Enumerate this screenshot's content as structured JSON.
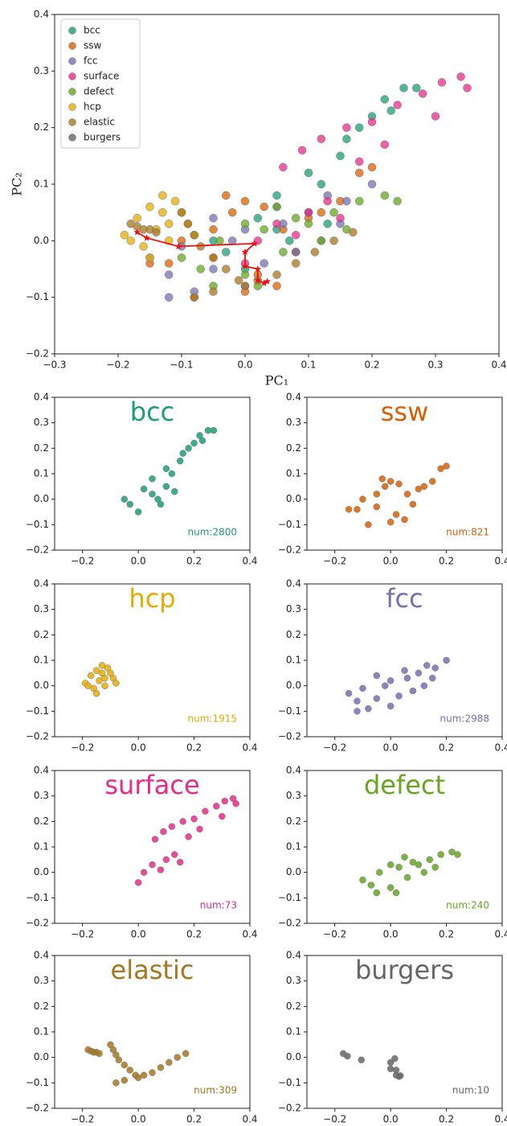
{
  "chart_data": [
    {
      "type": "scatter",
      "xlabel": "PC₁",
      "ylabel": "PC₂",
      "legend": "upper left",
      "xlim": [
        -0.3,
        0.4
      ],
      "ylim": [
        -0.2,
        0.4
      ],
      "xticks": [
        {
          "value": -0.3,
          "label": "−0.3"
        },
        {
          "value": -0.2,
          "label": "−0.2"
        },
        {
          "value": -0.1,
          "label": "−0.1"
        },
        {
          "value": 0,
          "label": "0.0"
        },
        0.1,
        0.2,
        0.3,
        0.4
      ],
      "yticks": [
        {
          "value": -0.2,
          "label": "−0.2"
        },
        {
          "value": -0.1,
          "label": "−0.1"
        },
        {
          "value": 0,
          "label": "0.0"
        },
        0.1,
        0.2,
        0.3,
        0.4
      ],
      "series": [
        {
          "name": "bcc",
          "color": "#1b9e77",
          "x": [
            -0.05,
            0,
            0.05,
            0.1,
            0.02,
            0.08,
            0.12,
            0.15,
            0.18,
            0.2,
            0.22,
            0.25,
            0.27,
            0.1,
            0.05,
            0.16,
            0.23,
            0.13,
            -0.03,
            0.07
          ],
          "y": [
            0,
            -0.05,
            0.02,
            0.05,
            0.04,
            -0.02,
            0.1,
            0.15,
            0.2,
            0.22,
            0.25,
            0.27,
            0.27,
            0.12,
            0.08,
            0.18,
            0.23,
            0.03,
            -0.02,
            0.0
          ]
        },
        {
          "name": "ssw",
          "color": "#d95f02",
          "x": [
            -0.15,
            -0.12,
            -0.08,
            -0.05,
            -0.02,
            0,
            0.03,
            0.06,
            0.1,
            0.12,
            0.15,
            0.18,
            0.2,
            -0.05,
            0.02,
            0.08,
            -0.1,
            0.05,
            0.0,
            -0.03
          ],
          "y": [
            -0.04,
            -0.04,
            -0.1,
            0.02,
            0.05,
            0.07,
            0.06,
            0.02,
            0.04,
            0.05,
            0.07,
            0.12,
            0.13,
            -0.03,
            -0.06,
            -0.02,
            0.0,
            -0.08,
            -0.09,
            0.08
          ]
        },
        {
          "name": "fcc",
          "color": "#7570b3",
          "x": [
            -0.15,
            -0.12,
            -0.08,
            -0.05,
            -0.02,
            0,
            0.03,
            0.06,
            0.1,
            0.13,
            0.16,
            0.2,
            -0.1,
            0.0,
            0.08,
            0.15,
            -0.05,
            0.05,
            0.12,
            -0.12
          ],
          "y": [
            -0.03,
            -0.06,
            -0.09,
            -0.05,
            0,
            0.02,
            -0.04,
            0.03,
            0.05,
            0.08,
            0.07,
            0.1,
            -0.01,
            -0.08,
            -0.02,
            0.03,
            0.04,
            0.06,
            0.0,
            -0.1
          ]
        },
        {
          "name": "surface",
          "color": "#e7298a",
          "x": [
            0.0,
            0.02,
            0.05,
            0.08,
            0.1,
            0.13,
            0.15,
            0.06,
            0.09,
            0.12,
            0.16,
            0.2,
            0.24,
            0.28,
            0.31,
            0.34,
            0.35,
            0.22,
            0.18,
            0.3
          ],
          "y": [
            -0.04,
            0.0,
            0.03,
            0.01,
            0.05,
            0.07,
            0.04,
            0.13,
            0.16,
            0.18,
            0.2,
            0.21,
            0.24,
            0.26,
            0.28,
            0.29,
            0.27,
            0.17,
            0.14,
            0.22
          ]
        },
        {
          "name": "defect",
          "color": "#66a61e",
          "x": [
            -0.1,
            -0.07,
            -0.04,
            0,
            0.03,
            0.06,
            0.1,
            0.14,
            0.18,
            0.22,
            0.24,
            0.02,
            0.08,
            0.12,
            -0.05,
            0.05,
            0.16,
            0.0
          ],
          "y": [
            -0.03,
            -0.05,
            0.0,
            -0.06,
            0.02,
            -0.02,
            0.03,
            0.05,
            0.07,
            0.08,
            0.07,
            -0.08,
            0.04,
            0.0,
            -0.08,
            0.06,
            0.02,
            0.03
          ]
        },
        {
          "name": "hcp",
          "color": "#e6ab02",
          "x": [
            -0.19,
            -0.17,
            -0.15,
            -0.13,
            -0.11,
            -0.09,
            -0.16,
            -0.14,
            -0.12,
            -0.1,
            -0.15,
            -0.12,
            -0.18,
            -0.08,
            -0.13
          ],
          "y": [
            0.01,
            0.04,
            0.06,
            0.08,
            0.07,
            0.03,
            -0.01,
            0.02,
            0.0,
            0.05,
            -0.03,
            0.03,
            0.0,
            0.01,
            0.05
          ]
        },
        {
          "name": "elastic",
          "color": "#a6761d",
          "x": [
            -0.18,
            -0.17,
            -0.16,
            -0.15,
            -0.14,
            -0.1,
            -0.09,
            -0.08,
            -0.07,
            -0.05,
            -0.03,
            -0.01,
            0.0,
            -0.08,
            -0.05,
            0.02,
            0.05,
            0.08,
            0.11,
            0.14,
            0.17
          ],
          "y": [
            0.03,
            0.025,
            0.02,
            0.02,
            0.015,
            0.05,
            0.03,
            0.01,
            -0.01,
            -0.03,
            -0.05,
            -0.07,
            -0.08,
            -0.1,
            -0.09,
            -0.07,
            -0.06,
            -0.04,
            -0.02,
            0.0,
            0.015
          ]
        },
        {
          "name": "burgers",
          "color": "#666666",
          "line_color": "#ee1111",
          "x": [
            -0.17,
            -0.155,
            -0.105,
            0.015,
            0.0,
            0.0,
            0.02,
            0.02,
            0.03,
            0.035
          ],
          "y": [
            0.015,
            0.005,
            -0.01,
            -0.005,
            -0.02,
            -0.045,
            -0.05,
            -0.07,
            -0.075,
            -0.072
          ]
        }
      ]
    },
    {
      "type": "panel",
      "title": "bcc",
      "annotation": "num:2800",
      "xlim": [
        -0.3,
        0.4
      ],
      "ylim": [
        -0.2,
        0.4
      ],
      "xticks": [
        {
          "value": -0.2,
          "label": "−0.2"
        },
        {
          "value": 0,
          "label": "0.0"
        },
        0.2,
        0.4
      ],
      "yticks": [
        {
          "value": -0.2,
          "label": "−0.2"
        },
        {
          "value": -0.1,
          "label": "−0.1"
        },
        {
          "value": 0,
          "label": "0.0"
        },
        0.1,
        0.2,
        0.3,
        0.4
      ]
    },
    {
      "type": "panel",
      "title": "ssw",
      "annotation": "num:821",
      "xlim": [
        -0.3,
        0.4
      ],
      "ylim": [
        -0.2,
        0.4
      ],
      "xticks": [
        {
          "value": -0.2,
          "label": "−0.2"
        },
        {
          "value": 0,
          "label": "0.0"
        },
        0.2,
        0.4
      ],
      "yticks": [
        {
          "value": -0.2,
          "label": "−0.2"
        },
        {
          "value": -0.1,
          "label": "−0.1"
        },
        {
          "value": 0,
          "label": "0.0"
        },
        0.1,
        0.2,
        0.3,
        0.4
      ]
    },
    {
      "type": "panel",
      "title": "hcp",
      "annotation": "num:1915",
      "xlim": [
        -0.3,
        0.4
      ],
      "ylim": [
        -0.2,
        0.4
      ],
      "xticks": [
        {
          "value": -0.2,
          "label": "−0.2"
        },
        {
          "value": 0,
          "label": "0.0"
        },
        0.2,
        0.4
      ],
      "yticks": [
        {
          "value": -0.2,
          "label": "−0.2"
        },
        {
          "value": -0.1,
          "label": "−0.1"
        },
        {
          "value": 0,
          "label": "0.0"
        },
        0.1,
        0.2,
        0.3,
        0.4
      ]
    },
    {
      "type": "panel",
      "title": "fcc",
      "annotation": "num:2988",
      "xlim": [
        -0.3,
        0.4
      ],
      "ylim": [
        -0.2,
        0.4
      ],
      "xticks": [
        {
          "value": -0.2,
          "label": "−0.2"
        },
        {
          "value": 0,
          "label": "0.0"
        },
        0.2,
        0.4
      ],
      "yticks": [
        {
          "value": -0.2,
          "label": "−0.2"
        },
        {
          "value": -0.1,
          "label": "−0.1"
        },
        {
          "value": 0,
          "label": "0.0"
        },
        0.1,
        0.2,
        0.3,
        0.4
      ]
    },
    {
      "type": "panel",
      "title": "surface",
      "annotation": "num:73",
      "xlim": [
        -0.3,
        0.4
      ],
      "ylim": [
        -0.2,
        0.4
      ],
      "xticks": [
        {
          "value": -0.2,
          "label": "−0.2"
        },
        {
          "value": 0,
          "label": "0.0"
        },
        0.2,
        0.4
      ],
      "yticks": [
        {
          "value": -0.2,
          "label": "−0.2"
        },
        {
          "value": -0.1,
          "label": "−0.1"
        },
        {
          "value": 0,
          "label": "0.0"
        },
        0.1,
        0.2,
        0.3,
        0.4
      ]
    },
    {
      "type": "panel",
      "title": "defect",
      "annotation": "num:240",
      "xlim": [
        -0.3,
        0.4
      ],
      "ylim": [
        -0.2,
        0.4
      ],
      "xticks": [
        {
          "value": -0.2,
          "label": "−0.2"
        },
        {
          "value": 0,
          "label": "0.0"
        },
        0.2,
        0.4
      ],
      "yticks": [
        {
          "value": -0.2,
          "label": "−0.2"
        },
        {
          "value": -0.1,
          "label": "−0.1"
        },
        {
          "value": 0,
          "label": "0.0"
        },
        0.1,
        0.2,
        0.3,
        0.4
      ]
    },
    {
      "type": "panel",
      "title": "elastic",
      "annotation": "num:309",
      "xlim": [
        -0.3,
        0.4
      ],
      "ylim": [
        -0.2,
        0.4
      ],
      "xticks": [
        {
          "value": -0.2,
          "label": "−0.2"
        },
        {
          "value": 0,
          "label": "0.0"
        },
        0.2,
        0.4
      ],
      "yticks": [
        {
          "value": -0.2,
          "label": "−0.2"
        },
        {
          "value": -0.1,
          "label": "−0.1"
        },
        {
          "value": 0,
          "label": "0.0"
        },
        0.1,
        0.2,
        0.3,
        0.4
      ]
    },
    {
      "type": "panel",
      "title": "burgers",
      "annotation": "num:10",
      "xlim": [
        -0.3,
        0.4
      ],
      "ylim": [
        -0.2,
        0.4
      ],
      "xticks": [
        {
          "value": -0.2,
          "label": "−0.2"
        },
        {
          "value": 0,
          "label": "0.0"
        },
        0.2,
        0.4
      ],
      "yticks": [
        {
          "value": -0.2,
          "label": "−0.2"
        },
        {
          "value": -0.1,
          "label": "−0.1"
        },
        {
          "value": 0,
          "label": "0.0"
        },
        0.1,
        0.2,
        0.3,
        0.4
      ]
    }
  ]
}
